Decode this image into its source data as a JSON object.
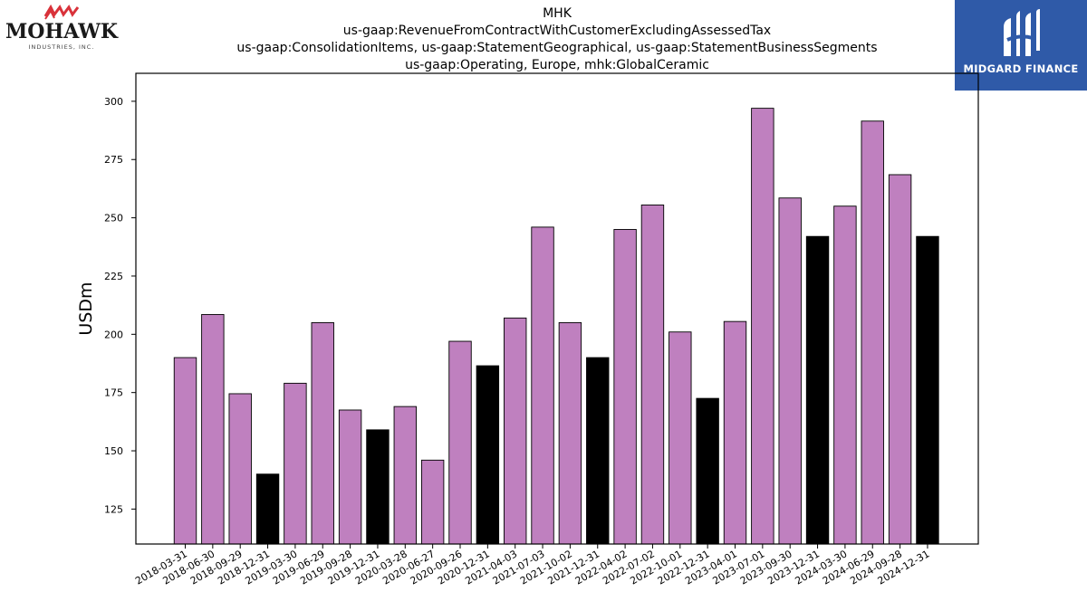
{
  "logos": {
    "left_word": "MOHAWK",
    "left_sub": "INDUSTRIES, INC.",
    "right_text": "MIDGARD FINANCE"
  },
  "colors": {
    "bar_regular": "#bf80bf",
    "bar_year_end": "#000000",
    "bar_edge": "#000000",
    "logo_right_bg": "#2f5aa8",
    "logo_left_accent": "#d9323a"
  },
  "chart_data": {
    "type": "bar",
    "title": [
      "MHK",
      "us-gaap:RevenueFromContractWithCustomerExcludingAssessedTax",
      "us-gaap:ConsolidationItems, us-gaap:StatementGeographical, us-gaap:StatementBusinessSegments",
      "us-gaap:Operating, Europe, mhk:GlobalCeramic"
    ],
    "xlabel": "",
    "ylabel": "USDm",
    "ylim": [
      110,
      312
    ],
    "yticks": [
      125,
      150,
      175,
      200,
      225,
      250,
      275,
      300
    ],
    "grid": false,
    "categories": [
      "2018-03-31",
      "2018-06-30",
      "2018-09-29",
      "2018-12-31",
      "2019-03-30",
      "2019-06-29",
      "2019-09-28",
      "2019-12-31",
      "2020-03-28",
      "2020-06-27",
      "2020-09-26",
      "2020-12-31",
      "2021-04-03",
      "2021-07-03",
      "2021-10-02",
      "2021-12-31",
      "2022-04-02",
      "2022-07-02",
      "2022-10-01",
      "2022-12-31",
      "2023-04-01",
      "2023-07-01",
      "2023-09-30",
      "2023-12-31",
      "2024-03-30",
      "2024-06-29",
      "2024-09-28",
      "2024-12-31"
    ],
    "values": [
      190,
      208.5,
      174.5,
      140,
      179,
      205,
      167.5,
      159,
      169,
      146,
      197,
      186.5,
      207,
      246,
      205,
      190,
      245,
      255.5,
      201,
      172.5,
      205.5,
      297,
      258.5,
      242,
      255,
      291.5,
      268.5,
      242
    ],
    "year_end": [
      false,
      false,
      false,
      true,
      false,
      false,
      false,
      true,
      false,
      false,
      false,
      true,
      false,
      false,
      false,
      true,
      false,
      false,
      false,
      true,
      false,
      false,
      false,
      true,
      false,
      false,
      false,
      true
    ]
  }
}
